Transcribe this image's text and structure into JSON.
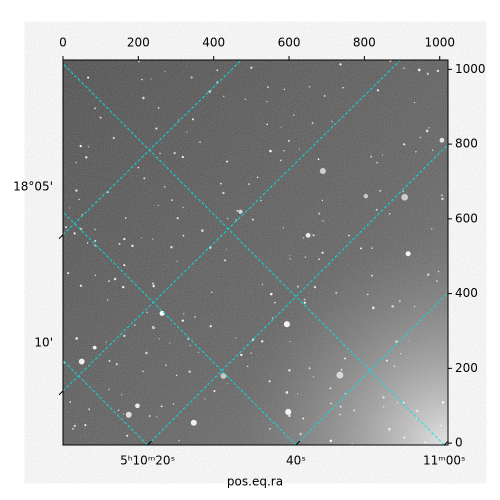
{
  "chart_data": {
    "type": "image",
    "xlim": [
      0,
      1022
    ],
    "xticks": [
      0,
      200,
      400,
      600,
      800,
      1000
    ],
    "ylim": [
      -5,
      1025
    ],
    "yticks": [
      0,
      200,
      400,
      600,
      800,
      1000
    ],
    "ra_lim": [
      18608.6,
      18660.5
    ],
    "ra_ticks": [
      {
        "value": 18620,
        "label": "5ʰ10ᵐ20ˢ"
      },
      {
        "value": 18640,
        "label": "40ˢ"
      },
      {
        "value": 18660,
        "label": "11ᵐ00ˢ"
      }
    ],
    "dec_lim": [
      13.27,
      0.94
    ],
    "dec_ticks": [
      {
        "value": 5,
        "label": "18°05'"
      },
      {
        "value": 10,
        "label": "10'"
      }
    ],
    "xlabel": "pos.eq.ra",
    "grid_color": "#00e5e5"
  }
}
